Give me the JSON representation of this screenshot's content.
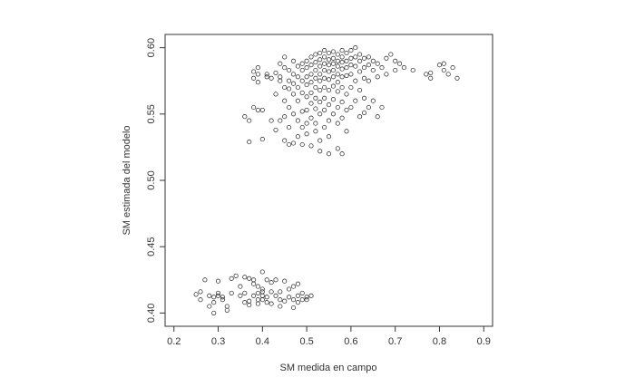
{
  "chart_data": {
    "type": "scatter",
    "title": "",
    "xlabel": "SM medida en campo",
    "ylabel": "SM estimada del modelo",
    "xlim": [
      0.18,
      0.92
    ],
    "ylim": [
      0.39,
      0.61
    ],
    "xticks": [
      0.2,
      0.3,
      0.4,
      0.5,
      0.6,
      0.7,
      0.8,
      0.9
    ],
    "xtick_labels": [
      "0.2",
      "0.3",
      "0.4",
      "0.5",
      "0.6",
      "0.7",
      "0.8",
      "0.9"
    ],
    "yticks": [
      0.4,
      0.45,
      0.5,
      0.55,
      0.6
    ],
    "ytick_labels": [
      "0.40",
      "0.45",
      "0.50",
      "0.55",
      "0.60"
    ],
    "grid": false,
    "marker": "open-circle",
    "marker_color": "#222222",
    "series": [
      {
        "points": [
          [
            0.25,
            0.414
          ],
          [
            0.26,
            0.41
          ],
          [
            0.26,
            0.416
          ],
          [
            0.27,
            0.425
          ],
          [
            0.28,
            0.413
          ],
          [
            0.28,
            0.405
          ],
          [
            0.29,
            0.412
          ],
          [
            0.29,
            0.408
          ],
          [
            0.29,
            0.4
          ],
          [
            0.3,
            0.415
          ],
          [
            0.3,
            0.413
          ],
          [
            0.3,
            0.424
          ],
          [
            0.31,
            0.412
          ],
          [
            0.31,
            0.41
          ],
          [
            0.32,
            0.402
          ],
          [
            0.33,
            0.415
          ],
          [
            0.33,
            0.426
          ],
          [
            0.34,
            0.428
          ],
          [
            0.35,
            0.42
          ],
          [
            0.35,
            0.413
          ],
          [
            0.36,
            0.427
          ],
          [
            0.36,
            0.415
          ],
          [
            0.37,
            0.426
          ],
          [
            0.37,
            0.409
          ],
          [
            0.37,
            0.406
          ],
          [
            0.38,
            0.422
          ],
          [
            0.38,
            0.425
          ],
          [
            0.38,
            0.413
          ],
          [
            0.39,
            0.42
          ],
          [
            0.39,
            0.415
          ],
          [
            0.39,
            0.41
          ],
          [
            0.39,
            0.407
          ],
          [
            0.4,
            0.431
          ],
          [
            0.4,
            0.416
          ],
          [
            0.4,
            0.413
          ],
          [
            0.4,
            0.41
          ],
          [
            0.4,
            0.418
          ],
          [
            0.41,
            0.412
          ],
          [
            0.41,
            0.408
          ],
          [
            0.41,
            0.425
          ],
          [
            0.42,
            0.416
          ],
          [
            0.42,
            0.407
          ],
          [
            0.42,
            0.423
          ],
          [
            0.43,
            0.425
          ],
          [
            0.43,
            0.413
          ],
          [
            0.44,
            0.416
          ],
          [
            0.44,
            0.41
          ],
          [
            0.45,
            0.424
          ],
          [
            0.45,
            0.409
          ],
          [
            0.46,
            0.418
          ],
          [
            0.46,
            0.412
          ],
          [
            0.47,
            0.41
          ],
          [
            0.47,
            0.404
          ],
          [
            0.47,
            0.42
          ],
          [
            0.48,
            0.413
          ],
          [
            0.48,
            0.422
          ],
          [
            0.48,
            0.408
          ],
          [
            0.49,
            0.41
          ],
          [
            0.49,
            0.415
          ],
          [
            0.5,
            0.412
          ],
          [
            0.5,
            0.41
          ],
          [
            0.51,
            0.413
          ],
          [
            0.44,
            0.405
          ],
          [
            0.36,
            0.408
          ],
          [
            0.32,
            0.405
          ],
          [
            0.36,
            0.548
          ],
          [
            0.37,
            0.545
          ],
          [
            0.37,
            0.529
          ],
          [
            0.38,
            0.577
          ],
          [
            0.38,
            0.582
          ],
          [
            0.38,
            0.555
          ],
          [
            0.39,
            0.58
          ],
          [
            0.39,
            0.585
          ],
          [
            0.39,
            0.574
          ],
          [
            0.39,
            0.553
          ],
          [
            0.4,
            0.531
          ],
          [
            0.4,
            0.553
          ],
          [
            0.41,
            0.58
          ],
          [
            0.41,
            0.578
          ],
          [
            0.42,
            0.577
          ],
          [
            0.42,
            0.545
          ],
          [
            0.43,
            0.565
          ],
          [
            0.43,
            0.538
          ],
          [
            0.43,
            0.581
          ],
          [
            0.44,
            0.588
          ],
          [
            0.44,
            0.578
          ],
          [
            0.44,
            0.575
          ],
          [
            0.44,
            0.545
          ],
          [
            0.45,
            0.593
          ],
          [
            0.45,
            0.585
          ],
          [
            0.45,
            0.57
          ],
          [
            0.45,
            0.56
          ],
          [
            0.45,
            0.548
          ],
          [
            0.45,
            0.53
          ],
          [
            0.46,
            0.583
          ],
          [
            0.46,
            0.575
          ],
          [
            0.46,
            0.569
          ],
          [
            0.46,
            0.555
          ],
          [
            0.46,
            0.54
          ],
          [
            0.46,
            0.527
          ],
          [
            0.47,
            0.59
          ],
          [
            0.47,
            0.58
          ],
          [
            0.47,
            0.573
          ],
          [
            0.47,
            0.565
          ],
          [
            0.47,
            0.55
          ],
          [
            0.47,
            0.528
          ],
          [
            0.48,
            0.586
          ],
          [
            0.48,
            0.578
          ],
          [
            0.48,
            0.57
          ],
          [
            0.48,
            0.56
          ],
          [
            0.48,
            0.545
          ],
          [
            0.48,
            0.533
          ],
          [
            0.49,
            0.588
          ],
          [
            0.49,
            0.583
          ],
          [
            0.49,
            0.575
          ],
          [
            0.49,
            0.566
          ],
          [
            0.49,
            0.552
          ],
          [
            0.49,
            0.54
          ],
          [
            0.49,
            0.527
          ],
          [
            0.5,
            0.59
          ],
          [
            0.5,
            0.585
          ],
          [
            0.5,
            0.578
          ],
          [
            0.5,
            0.572
          ],
          [
            0.5,
            0.563
          ],
          [
            0.5,
            0.553
          ],
          [
            0.5,
            0.543
          ],
          [
            0.5,
            0.535
          ],
          [
            0.51,
            0.593
          ],
          [
            0.51,
            0.587
          ],
          [
            0.51,
            0.58
          ],
          [
            0.51,
            0.574
          ],
          [
            0.51,
            0.566
          ],
          [
            0.51,
            0.558
          ],
          [
            0.51,
            0.547
          ],
          [
            0.51,
            0.526
          ],
          [
            0.52,
            0.595
          ],
          [
            0.52,
            0.589
          ],
          [
            0.52,
            0.583
          ],
          [
            0.52,
            0.577
          ],
          [
            0.52,
            0.57
          ],
          [
            0.52,
            0.562
          ],
          [
            0.52,
            0.554
          ],
          [
            0.52,
            0.537
          ],
          [
            0.53,
            0.596
          ],
          [
            0.53,
            0.591
          ],
          [
            0.53,
            0.586
          ],
          [
            0.53,
            0.58
          ],
          [
            0.53,
            0.575
          ],
          [
            0.53,
            0.568
          ],
          [
            0.53,
            0.559
          ],
          [
            0.53,
            0.55
          ],
          [
            0.53,
            0.53
          ],
          [
            0.54,
            0.598
          ],
          [
            0.54,
            0.593
          ],
          [
            0.54,
            0.588
          ],
          [
            0.54,
            0.583
          ],
          [
            0.54,
            0.577
          ],
          [
            0.54,
            0.57
          ],
          [
            0.54,
            0.562
          ],
          [
            0.54,
            0.553
          ],
          [
            0.54,
            0.54
          ],
          [
            0.55,
            0.596
          ],
          [
            0.55,
            0.591
          ],
          [
            0.55,
            0.587
          ],
          [
            0.55,
            0.582
          ],
          [
            0.55,
            0.576
          ],
          [
            0.55,
            0.568
          ],
          [
            0.55,
            0.557
          ],
          [
            0.55,
            0.545
          ],
          [
            0.55,
            0.533
          ],
          [
            0.56,
            0.597
          ],
          [
            0.56,
            0.592
          ],
          [
            0.56,
            0.588
          ],
          [
            0.56,
            0.583
          ],
          [
            0.56,
            0.578
          ],
          [
            0.56,
            0.571
          ],
          [
            0.56,
            0.561
          ],
          [
            0.56,
            0.55
          ],
          [
            0.57,
            0.595
          ],
          [
            0.57,
            0.59
          ],
          [
            0.57,
            0.586
          ],
          [
            0.57,
            0.58
          ],
          [
            0.57,
            0.574
          ],
          [
            0.57,
            0.567
          ],
          [
            0.57,
            0.555
          ],
          [
            0.57,
            0.543
          ],
          [
            0.57,
            0.524
          ],
          [
            0.58,
            0.598
          ],
          [
            0.58,
            0.593
          ],
          [
            0.58,
            0.589
          ],
          [
            0.58,
            0.584
          ],
          [
            0.58,
            0.578
          ],
          [
            0.58,
            0.57
          ],
          [
            0.58,
            0.559
          ],
          [
            0.58,
            0.547
          ],
          [
            0.58,
            0.52
          ],
          [
            0.59,
            0.596
          ],
          [
            0.59,
            0.59
          ],
          [
            0.59,
            0.585
          ],
          [
            0.59,
            0.579
          ],
          [
            0.59,
            0.565
          ],
          [
            0.59,
            0.553
          ],
          [
            0.59,
            0.537
          ],
          [
            0.6,
            0.598
          ],
          [
            0.6,
            0.592
          ],
          [
            0.6,
            0.587
          ],
          [
            0.6,
            0.58
          ],
          [
            0.6,
            0.57
          ],
          [
            0.6,
            0.555
          ],
          [
            0.61,
            0.6
          ],
          [
            0.61,
            0.593
          ],
          [
            0.61,
            0.586
          ],
          [
            0.61,
            0.575
          ],
          [
            0.61,
            0.56
          ],
          [
            0.62,
            0.595
          ],
          [
            0.62,
            0.59
          ],
          [
            0.62,
            0.582
          ],
          [
            0.62,
            0.568
          ],
          [
            0.62,
            0.548
          ],
          [
            0.63,
            0.592
          ],
          [
            0.63,
            0.585
          ],
          [
            0.63,
            0.577
          ],
          [
            0.63,
            0.562
          ],
          [
            0.64,
            0.593
          ],
          [
            0.64,
            0.587
          ],
          [
            0.64,
            0.575
          ],
          [
            0.64,
            0.555
          ],
          [
            0.65,
            0.59
          ],
          [
            0.65,
            0.583
          ],
          [
            0.65,
            0.56
          ],
          [
            0.66,
            0.588
          ],
          [
            0.66,
            0.578
          ],
          [
            0.66,
            0.548
          ],
          [
            0.67,
            0.585
          ],
          [
            0.67,
            0.555
          ],
          [
            0.68,
            0.592
          ],
          [
            0.68,
            0.58
          ],
          [
            0.69,
            0.595
          ],
          [
            0.7,
            0.59
          ],
          [
            0.7,
            0.583
          ],
          [
            0.71,
            0.588
          ],
          [
            0.72,
            0.585
          ],
          [
            0.74,
            0.583
          ],
          [
            0.77,
            0.58
          ],
          [
            0.78,
            0.577
          ],
          [
            0.78,
            0.581
          ],
          [
            0.8,
            0.587
          ],
          [
            0.81,
            0.588
          ],
          [
            0.81,
            0.583
          ],
          [
            0.82,
            0.58
          ],
          [
            0.83,
            0.585
          ],
          [
            0.84,
            0.577
          ],
          [
            0.63,
            0.551
          ],
          [
            0.53,
            0.522
          ],
          [
            0.52,
            0.543
          ],
          [
            0.55,
            0.52
          ]
        ]
      }
    ]
  }
}
